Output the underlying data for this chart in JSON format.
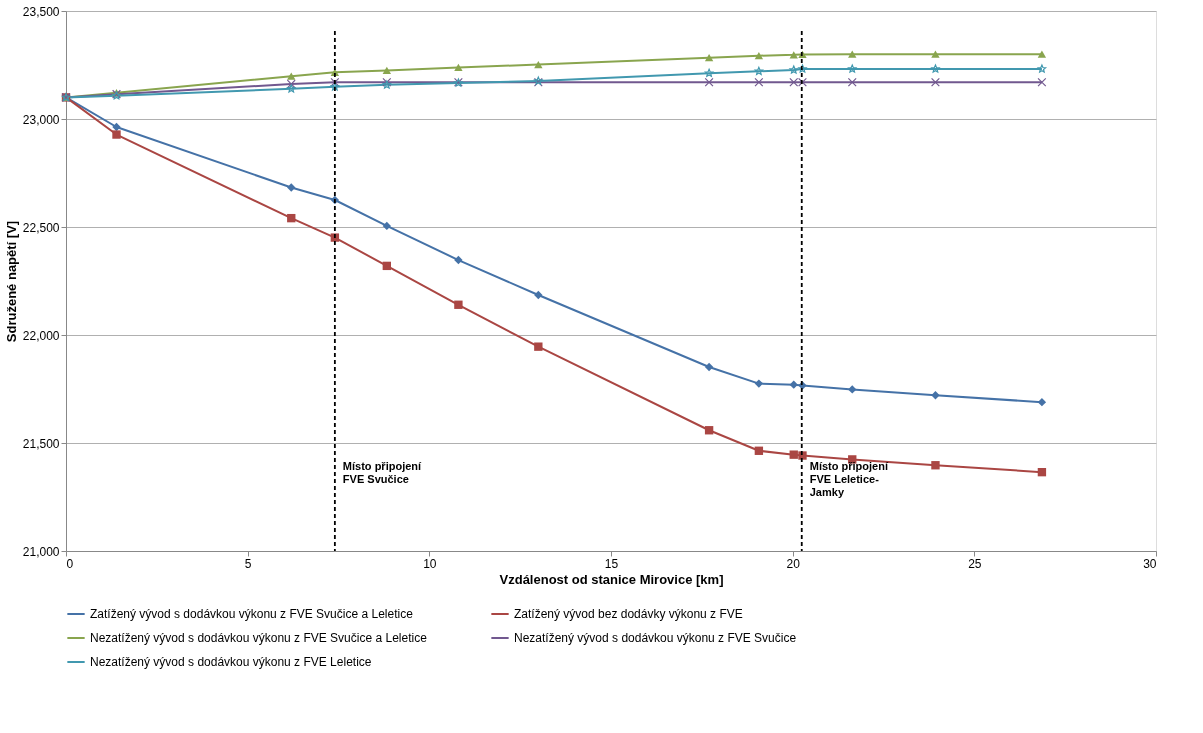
{
  "chart_data": {
    "type": "line",
    "x": [
      0,
      1.39,
      6.2,
      7.4,
      8.83,
      10.8,
      13.0,
      17.7,
      19.07,
      20.03,
      20.27,
      21.64,
      23.93,
      26.86
    ],
    "xlabel": "Vzdálenost od stanice Mirovice [km]",
    "ylabel": "Sdružené napětí [V]",
    "xlim": [
      0,
      30
    ],
    "xticks": [
      0,
      5,
      10,
      15,
      20,
      25,
      30
    ],
    "ylim": [
      21000,
      23500
    ],
    "yticks": [
      {
        "value": 21000,
        "label": "21,000"
      },
      {
        "value": 21500,
        "label": "21,500"
      },
      {
        "value": 22000,
        "label": "22,000"
      },
      {
        "value": 22500,
        "label": "22,500"
      },
      {
        "value": 23000,
        "label": "23,000"
      },
      {
        "value": 23500,
        "label": "23,500"
      }
    ],
    "grid": "y",
    "legend": "bottom",
    "line_style": "solid",
    "series": [
      {
        "name": "Zatížený vývod s dodávkou výkonu z FVE Svučice a Leletice",
        "color": "#4572a7",
        "marker": "diamond",
        "values": [
          23100,
          22963,
          22683,
          22625,
          22505,
          22347,
          22185,
          21852,
          21775,
          21770,
          21766,
          21748,
          21721,
          21689
        ]
      },
      {
        "name": "Zatížený vývod bez dodávky výkonu z FVE",
        "color": "#aa4643",
        "marker": "square",
        "values": [
          23100,
          22928,
          22541,
          22451,
          22320,
          22140,
          21946,
          21559,
          21464,
          21446,
          21442,
          21424,
          21397,
          21365
        ]
      },
      {
        "name": "Nezatížený vývod s dodávkou výkonu z FVE Svučice a Leletice",
        "color": "#89a54e",
        "marker": "triangle",
        "values": [
          23100,
          23122,
          23198,
          23216,
          23225,
          23239,
          23252,
          23284,
          23293,
          23297,
          23299,
          23300,
          23300,
          23300
        ]
      },
      {
        "name": "Nezatížený vývod s dodávkou výkonu z FVE Svučice",
        "color": "#71588f",
        "marker": "cross",
        "values": [
          23100,
          23115,
          23162,
          23170,
          23170,
          23170,
          23170,
          23170,
          23170,
          23170,
          23170,
          23170,
          23170,
          23170
        ]
      },
      {
        "name": "Nezatížený vývod s dodávkou výkonu z FVE Leletice",
        "color": "#4198af",
        "marker": "star",
        "values": [
          23100,
          23108,
          23140,
          23149,
          23158,
          23167,
          23176,
          23212,
          23221,
          23227,
          23232,
          23232,
          23232,
          23232
        ]
      }
    ],
    "ref_lines": [
      {
        "axis": "x",
        "value": 7.4,
        "label": "Místo připojení FVE Svučice",
        "color": "#000000",
        "line_style": "dashed"
      },
      {
        "axis": "x",
        "value": 20.25,
        "label": "Místo připojení FVE Leletice-Jamky",
        "color": "#000000",
        "line_style": "dashed"
      }
    ]
  }
}
